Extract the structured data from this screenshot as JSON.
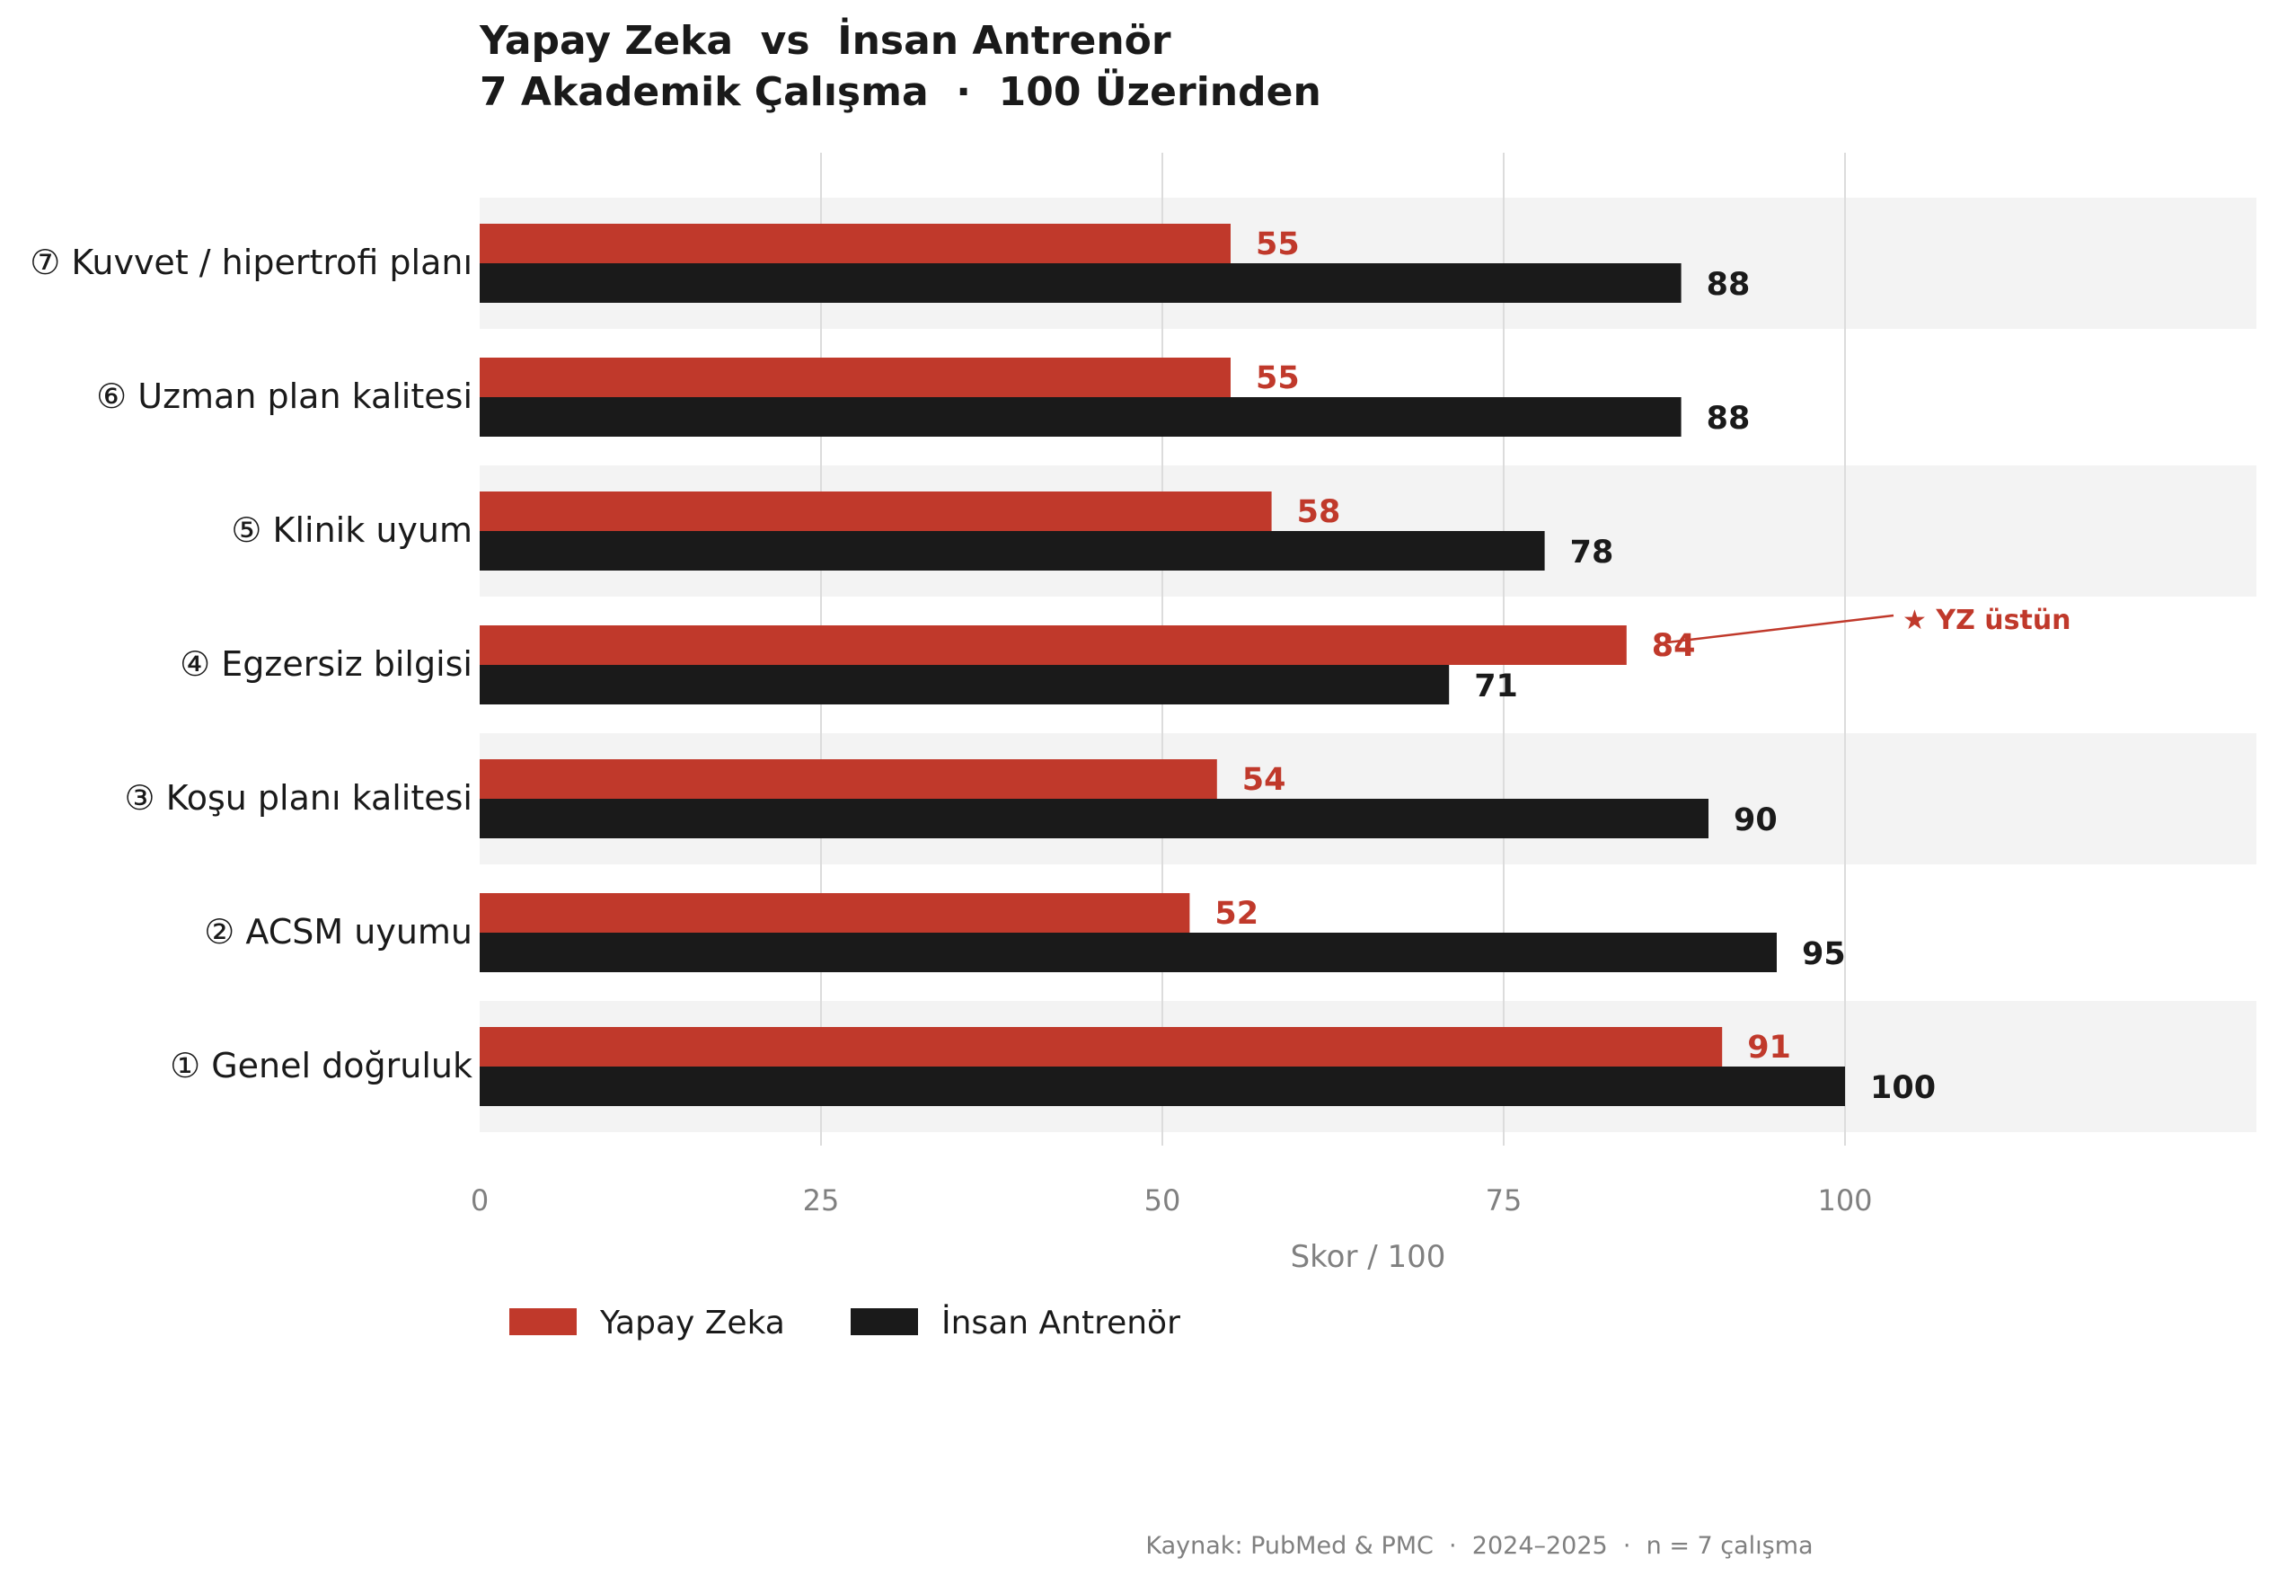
{
  "chart_data": {
    "type": "bar",
    "orientation": "horizontal",
    "title": "Yapay Zeka  vs  İnsan Antrenör",
    "subtitle": "7 Akademik Çalışma  ·  100 Üzerinden",
    "categories": [
      "⑦ Kuvvet / hipertrofi planı",
      "⑥ Uzman plan kalitesi",
      "⑤ Klinik uyum",
      "④ Egzersiz bilgisi",
      "③ Koşu planı kalitesi",
      "② ACSM uyumu",
      "① Genel doğruluk"
    ],
    "series": [
      {
        "name": "Yapay Zeka",
        "color": "#c0392b",
        "values": [
          55,
          55,
          58,
          84,
          54,
          52,
          91
        ]
      },
      {
        "name": "İnsan Antrenör",
        "color": "#1a1a1a",
        "values": [
          88,
          88,
          78,
          71,
          90,
          95,
          100
        ]
      }
    ],
    "xlabel": "Skor  /  100",
    "xlim": [
      0,
      130
    ],
    "xticks": [
      0,
      25,
      50,
      75,
      100
    ],
    "grid": "vertical",
    "legend": "bottom-left",
    "annotation": {
      "text": "★  YZ üstün",
      "category_index": 3,
      "color": "#c0392b"
    },
    "source": "Kaynak: PubMed & PMC  ·  2024–2025  ·  n = 7 çalışma"
  }
}
